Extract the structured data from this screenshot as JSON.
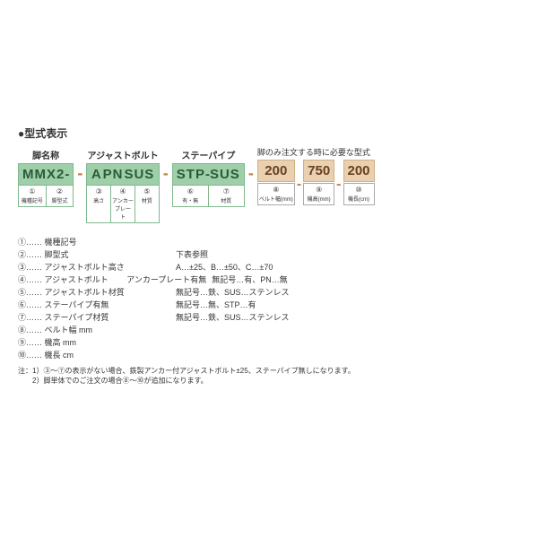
{
  "title": "●型式表示",
  "group1": {
    "header": "脚名称",
    "code": "MMX2",
    "sep": "-",
    "circ1": "①",
    "desc1": "機種記号",
    "circ2": "②",
    "desc2": "脚型式"
  },
  "group2": {
    "header": "アジャストボルト",
    "c1": "A",
    "c2": "PN",
    "c3": "SUS",
    "circ1": "③",
    "d1": "高さ",
    "circ2": "④",
    "d2": "アンカープレート",
    "circ3": "⑤",
    "d3": "材質"
  },
  "group3": {
    "header": "ステーパイプ",
    "c1": "STP",
    "sep": "-",
    "c2": "SUS",
    "circ1": "⑥",
    "d1": "有・無",
    "circ2": "⑦",
    "d2": "材質"
  },
  "extraHeader": "脚のみ注文する時に必要な型式",
  "e1": {
    "v": "200",
    "circ": "⑧",
    "d": "ベルト幅(mm)"
  },
  "e2": {
    "v": "750",
    "circ": "⑨",
    "d": "機高(mm)"
  },
  "e3": {
    "v": "200",
    "circ": "⑩",
    "d": "機長(cm)"
  },
  "legend": [
    {
      "n": "①",
      "l": "機種記号",
      "r": ""
    },
    {
      "n": "②",
      "l": "脚型式",
      "r": "下表参照"
    },
    {
      "n": "③",
      "l": "アジャストボルト高さ",
      "r": "A…±25、B…±50、C…±70"
    },
    {
      "n": "④",
      "l": "アジャストボルト\n　　アンカープレート有無",
      "r": "無記号…有、PN…無"
    },
    {
      "n": "⑤",
      "l": "アジャストボルト材質",
      "r": "無記号…鉄、SUS…ステンレス"
    },
    {
      "n": "⑥",
      "l": "ステーパイプ有無",
      "r": "無記号…無、STP…有"
    },
    {
      "n": "⑦",
      "l": "ステーパイプ材質",
      "r": "無記号…鉄、SUS…ステンレス"
    },
    {
      "n": "⑧",
      "l": "ベルト幅 mm",
      "r": ""
    },
    {
      "n": "⑨",
      "l": "機高 mm",
      "r": ""
    },
    {
      "n": "⑩",
      "l": "機長 cm",
      "r": ""
    }
  ],
  "note1": "注：1）③～⑦の表示がない場合、鉄製アンカー付アジャストボルト±25、ステーパイプ無しになります。",
  "note2": "　　2）脚単体でのご注文の場合⑧～⑩が追加になります。",
  "colors": {
    "greenBg": "#9ecfa8",
    "greenBorder": "#7fb88c",
    "greenText": "#2a5a3a",
    "tanBg": "#e8d0b0",
    "tanText": "#6a4020"
  }
}
